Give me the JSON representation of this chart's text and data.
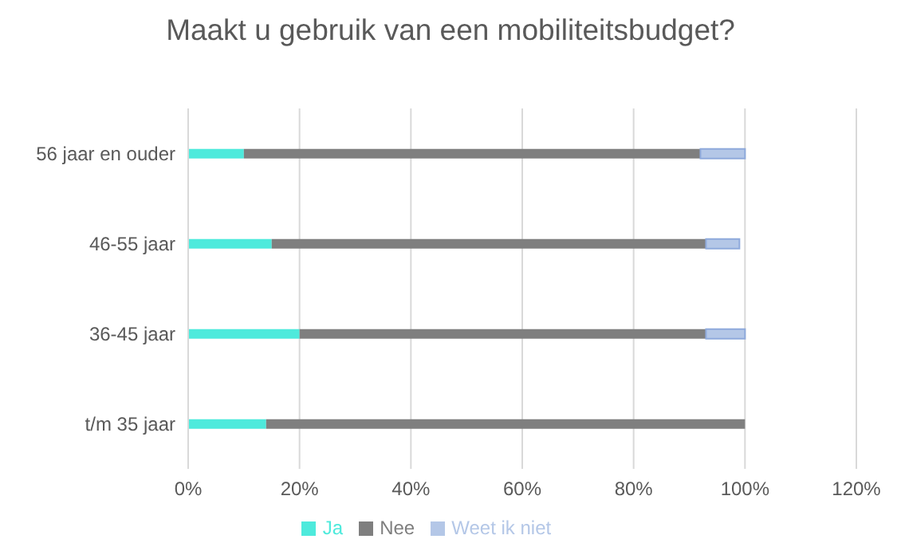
{
  "chart_data": {
    "type": "bar",
    "title": "Maakt u gebruik van een mobiliteitsbudget?",
    "orientation": "horizontal",
    "stacked": true,
    "categories": [
      "56 jaar en ouder",
      "46-55 jaar",
      "36-45 jaar",
      "t/m 35 jaar"
    ],
    "series": [
      {
        "name": "Ja",
        "color": "#4eeadc",
        "values": [
          10,
          15,
          20,
          14
        ]
      },
      {
        "name": "Nee",
        "color": "#7f7f7f",
        "values": [
          82,
          78,
          73,
          86
        ]
      },
      {
        "name": "Weet ik niet",
        "color": "#b4c7e7",
        "values": [
          8,
          6,
          7,
          0
        ]
      }
    ],
    "xlim": [
      0,
      120
    ],
    "xticks": [
      {
        "value": 0,
        "label": "0%"
      },
      {
        "value": 20,
        "label": "20%"
      },
      {
        "value": 40,
        "label": "40%"
      },
      {
        "value": 60,
        "label": "60%"
      },
      {
        "value": 80,
        "label": "80%"
      },
      {
        "value": 100,
        "label": "100%"
      },
      {
        "value": 120,
        "label": "120%"
      }
    ],
    "grid": "x",
    "legend": "bottom"
  }
}
